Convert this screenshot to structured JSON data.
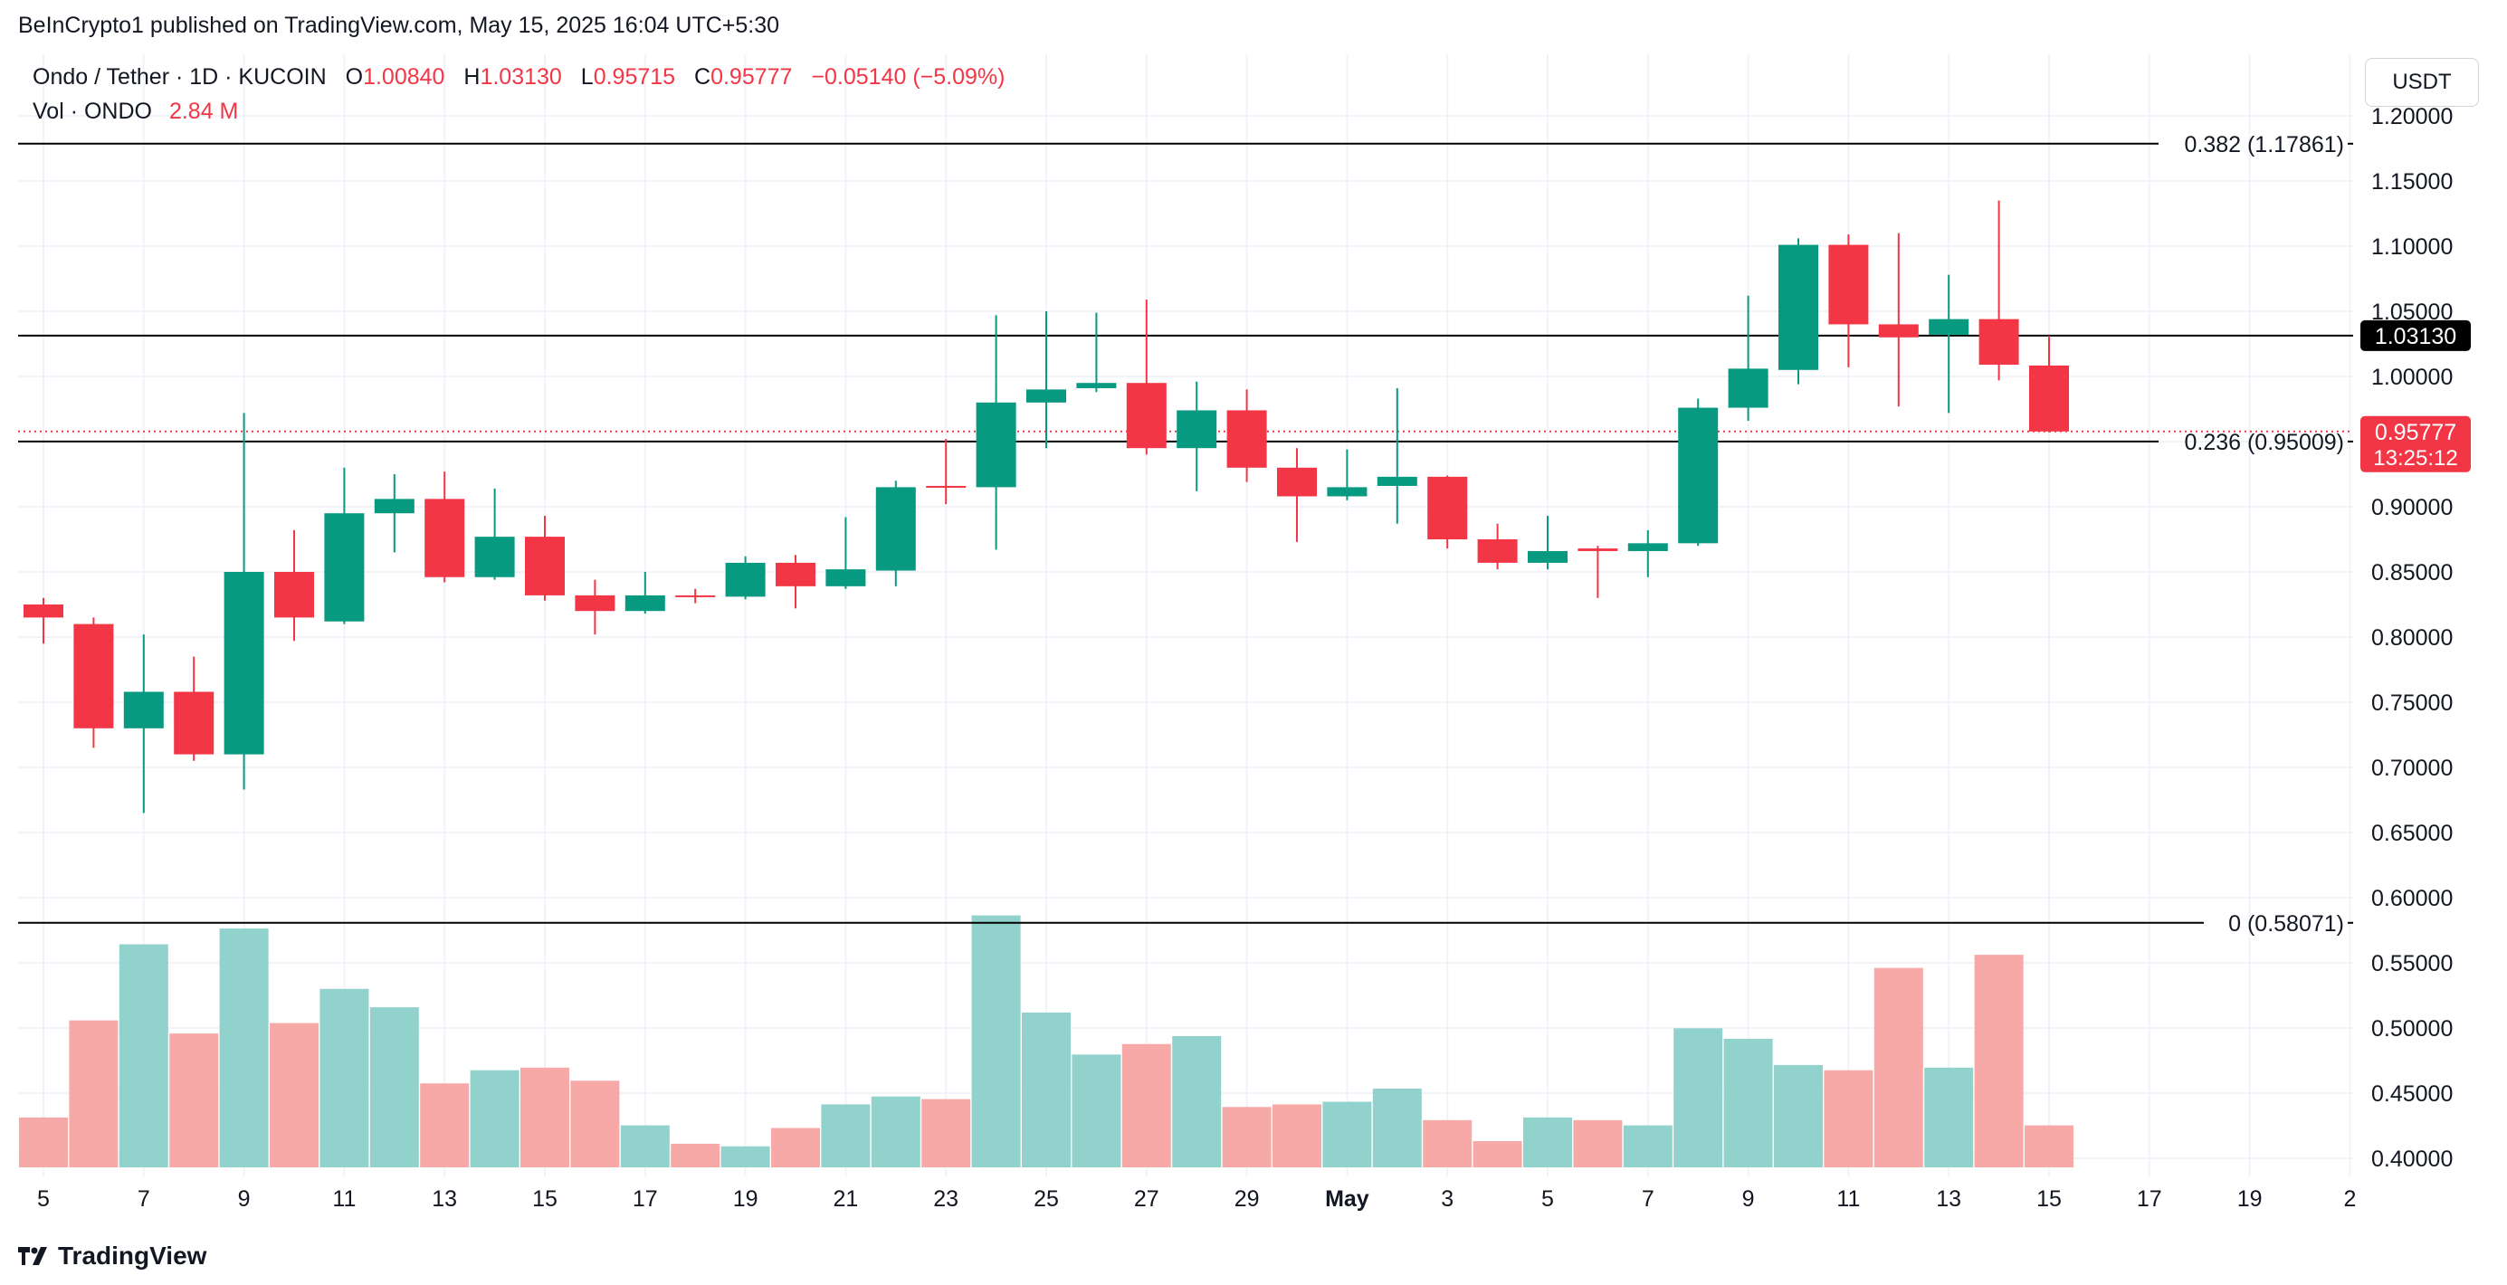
{
  "header": {
    "publisher_line": "BeInCrypto1 published on TradingView.com, May 15, 2025 16:04 UTC+5:30"
  },
  "legend": {
    "symbol": "Ondo / Tether · 1D · KUCOIN",
    "open_label": "O",
    "open": "1.00840",
    "high_label": "H",
    "high": "1.03130",
    "low_label": "L",
    "low": "0.95715",
    "close_label": "C",
    "close": "0.95777",
    "change": "−0.05140 (−5.09%)",
    "vol_label": "Vol · ONDO",
    "vol_value": "2.84 M"
  },
  "currency_button": "USDT",
  "footer": {
    "brand": "TradingView"
  },
  "colors": {
    "up": "#089981",
    "down": "#f23645",
    "up_volume": "#92d2cc",
    "down_volume": "#f7a9a7",
    "grid": "#f0f3fa",
    "text": "#131722"
  },
  "chart_data": {
    "type": "candlestick",
    "symbol": "Ondo / Tether",
    "interval": "1D",
    "exchange": "KUCOIN",
    "y_axis": {
      "ylim": [
        0.38,
        1.22
      ],
      "ticks": [
        "1.20000",
        "1.15000",
        "1.10000",
        "1.05000",
        "1.00000",
        "0.95000",
        "0.90000",
        "0.85000",
        "0.80000",
        "0.75000",
        "0.70000",
        "0.65000",
        "0.60000",
        "0.55000",
        "0.50000",
        "0.45000",
        "0.40000"
      ],
      "position": "right"
    },
    "x_axis": {
      "ticks": [
        "5",
        "7",
        "9",
        "11",
        "13",
        "15",
        "17",
        "19",
        "21",
        "23",
        "25",
        "27",
        "29",
        "May",
        "3",
        "5",
        "7",
        "9",
        "11",
        "13",
        "15",
        "17",
        "19",
        "2"
      ],
      "bold_ticks": [
        "May"
      ]
    },
    "candles": [
      {
        "date": "Apr 5",
        "o": 0.825,
        "h": 0.83,
        "l": 0.795,
        "c": 0.815
      },
      {
        "date": "Apr 6",
        "o": 0.81,
        "h": 0.815,
        "l": 0.715,
        "c": 0.73
      },
      {
        "date": "Apr 7",
        "o": 0.73,
        "h": 0.802,
        "l": 0.665,
        "c": 0.758
      },
      {
        "date": "Apr 8",
        "o": 0.758,
        "h": 0.785,
        "l": 0.705,
        "c": 0.71
      },
      {
        "date": "Apr 9",
        "o": 0.71,
        "h": 0.972,
        "l": 0.683,
        "c": 0.85
      },
      {
        "date": "Apr 10",
        "o": 0.85,
        "h": 0.882,
        "l": 0.797,
        "c": 0.815
      },
      {
        "date": "Apr 11",
        "o": 0.812,
        "h": 0.93,
        "l": 0.81,
        "c": 0.895
      },
      {
        "date": "Apr 12",
        "o": 0.895,
        "h": 0.925,
        "l": 0.865,
        "c": 0.906
      },
      {
        "date": "Apr 13",
        "o": 0.906,
        "h": 0.927,
        "l": 0.842,
        "c": 0.846
      },
      {
        "date": "Apr 14",
        "o": 0.846,
        "h": 0.914,
        "l": 0.844,
        "c": 0.877
      },
      {
        "date": "Apr 15",
        "o": 0.877,
        "h": 0.893,
        "l": 0.828,
        "c": 0.832
      },
      {
        "date": "Apr 16",
        "o": 0.832,
        "h": 0.844,
        "l": 0.802,
        "c": 0.82
      },
      {
        "date": "Apr 17",
        "o": 0.82,
        "h": 0.85,
        "l": 0.818,
        "c": 0.832
      },
      {
        "date": "Apr 18",
        "o": 0.832,
        "h": 0.837,
        "l": 0.826,
        "c": 0.831
      },
      {
        "date": "Apr 19",
        "o": 0.831,
        "h": 0.862,
        "l": 0.829,
        "c": 0.857
      },
      {
        "date": "Apr 20",
        "o": 0.857,
        "h": 0.863,
        "l": 0.822,
        "c": 0.839
      },
      {
        "date": "Apr 21",
        "o": 0.839,
        "h": 0.892,
        "l": 0.837,
        "c": 0.852
      },
      {
        "date": "Apr 22",
        "o": 0.851,
        "h": 0.92,
        "l": 0.839,
        "c": 0.915
      },
      {
        "date": "Apr 23",
        "o": 0.916,
        "h": 0.952,
        "l": 0.902,
        "c": 0.915
      },
      {
        "date": "Apr 24",
        "o": 0.915,
        "h": 1.047,
        "l": 0.867,
        "c": 0.98
      },
      {
        "date": "Apr 25",
        "o": 0.98,
        "h": 1.05,
        "l": 0.945,
        "c": 0.99
      },
      {
        "date": "Apr 26",
        "o": 0.991,
        "h": 1.049,
        "l": 0.988,
        "c": 0.995
      },
      {
        "date": "Apr 27",
        "o": 0.995,
        "h": 1.059,
        "l": 0.94,
        "c": 0.945
      },
      {
        "date": "Apr 28",
        "o": 0.945,
        "h": 0.996,
        "l": 0.912,
        "c": 0.974
      },
      {
        "date": "Apr 29",
        "o": 0.974,
        "h": 0.99,
        "l": 0.919,
        "c": 0.93
      },
      {
        "date": "Apr 30",
        "o": 0.93,
        "h": 0.945,
        "l": 0.873,
        "c": 0.908
      },
      {
        "date": "May 1",
        "o": 0.908,
        "h": 0.944,
        "l": 0.905,
        "c": 0.915
      },
      {
        "date": "May 2",
        "o": 0.916,
        "h": 0.991,
        "l": 0.887,
        "c": 0.923
      },
      {
        "date": "May 3",
        "o": 0.923,
        "h": 0.924,
        "l": 0.868,
        "c": 0.875
      },
      {
        "date": "May 4",
        "o": 0.875,
        "h": 0.887,
        "l": 0.852,
        "c": 0.857
      },
      {
        "date": "May 5",
        "o": 0.857,
        "h": 0.893,
        "l": 0.852,
        "c": 0.866
      },
      {
        "date": "May 6",
        "o": 0.868,
        "h": 0.87,
        "l": 0.83,
        "c": 0.866
      },
      {
        "date": "May 7",
        "o": 0.866,
        "h": 0.882,
        "l": 0.846,
        "c": 0.872
      },
      {
        "date": "May 8",
        "o": 0.872,
        "h": 0.983,
        "l": 0.87,
        "c": 0.976
      },
      {
        "date": "May 9",
        "o": 0.976,
        "h": 1.062,
        "l": 0.966,
        "c": 1.006
      },
      {
        "date": "May 10",
        "o": 1.005,
        "h": 1.106,
        "l": 0.994,
        "c": 1.101
      },
      {
        "date": "May 11",
        "o": 1.101,
        "h": 1.109,
        "l": 1.007,
        "c": 1.04
      },
      {
        "date": "May 12",
        "o": 1.04,
        "h": 1.11,
        "l": 0.977,
        "c": 1.03
      },
      {
        "date": "May 13",
        "o": 1.032,
        "h": 1.078,
        "l": 0.972,
        "c": 1.044
      },
      {
        "date": "May 14",
        "o": 1.044,
        "h": 1.135,
        "l": 0.997,
        "c": 1.009
      },
      {
        "date": "May 15",
        "o": 1.0084,
        "h": 1.0313,
        "l": 0.95715,
        "c": 0.95777
      }
    ],
    "volume_bars_relative": [
      0.19,
      0.56,
      0.85,
      0.51,
      0.91,
      0.55,
      0.68,
      0.61,
      0.32,
      0.37,
      0.38,
      0.33,
      0.16,
      0.09,
      0.08,
      0.15,
      0.24,
      0.27,
      0.26,
      0.96,
      0.59,
      0.43,
      0.47,
      0.5,
      0.23,
      0.24,
      0.25,
      0.3,
      0.18,
      0.1,
      0.19,
      0.18,
      0.16,
      0.53,
      0.49,
      0.39,
      0.37,
      0.76,
      0.38,
      0.81,
      0.16
    ],
    "horizontal_lines": [
      {
        "label": "0.382 (1.17861)",
        "value": 1.17861
      },
      {
        "label": "",
        "value": 1.0313
      },
      {
        "label": "0.236 (0.95009)",
        "value": 0.95009
      },
      {
        "label": "0 (0.58071)",
        "value": 0.58071
      }
    ],
    "price_labels": [
      {
        "text": "1.03130",
        "value": 1.0313,
        "bg": "#000000"
      },
      {
        "text": "0.95777",
        "sub": "13:25:12",
        "value": 0.95777,
        "bg": "#f23645"
      }
    ],
    "current_price": 0.95777
  }
}
